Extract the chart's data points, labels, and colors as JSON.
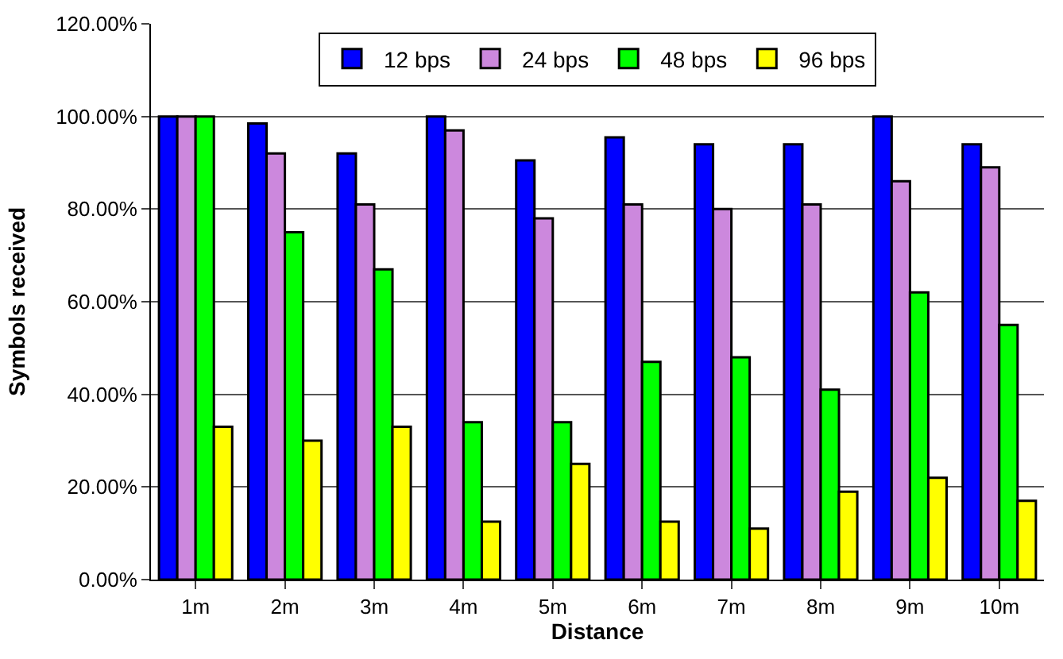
{
  "chart_data": {
    "type": "bar",
    "xlabel": "Distance",
    "ylabel": "Symbols received",
    "categories": [
      "1m",
      "2m",
      "3m",
      "4m",
      "5m",
      "6m",
      "7m",
      "8m",
      "9m",
      "10m"
    ],
    "series": [
      {
        "name": "12 bps",
        "color": "#0000ff",
        "values": [
          100,
          98.5,
          92,
          100,
          90.5,
          95.5,
          94,
          94,
          100,
          94
        ]
      },
      {
        "name": "24 bps",
        "color": "#cc88dd",
        "values": [
          100,
          92,
          81,
          97,
          78,
          81,
          80,
          81,
          86,
          89
        ]
      },
      {
        "name": "48 bps",
        "color": "#00ff00",
        "values": [
          100,
          75,
          67,
          34,
          34,
          47,
          48,
          41,
          62,
          55
        ]
      },
      {
        "name": "96 bps",
        "color": "#ffff00",
        "values": [
          33,
          30,
          33,
          12.5,
          25,
          12.5,
          11,
          19,
          22,
          17
        ]
      }
    ],
    "ylim": [
      0,
      120
    ],
    "yticks": [
      {
        "value": 0,
        "label": "0.00%"
      },
      {
        "value": 20,
        "label": "20.00%"
      },
      {
        "value": 40,
        "label": "40.00%"
      },
      {
        "value": 60,
        "label": "60.00%"
      },
      {
        "value": 80,
        "label": "80.00%"
      },
      {
        "value": 100,
        "label": "100.00%"
      },
      {
        "value": 120,
        "label": "120.00%"
      }
    ],
    "grid": "y",
    "legend": "top"
  }
}
